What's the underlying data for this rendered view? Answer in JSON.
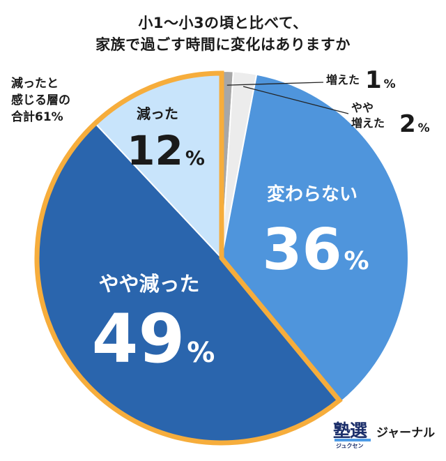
{
  "title_line1": "小1～小3の頃と比べて、",
  "title_line2": "家族で過ごす時間に変化はありますか",
  "note_line1": "減ったと",
  "note_line2": "感じる層の",
  "note_line3": "合計61%",
  "logo": {
    "main": "塾選",
    "ruby": "ジュクセン",
    "sub": "ジャーナル"
  },
  "colors": {
    "highlight_border": "#f6ad3c"
  },
  "chart_data": {
    "type": "pie",
    "start": "top-clockwise",
    "slices": [
      {
        "label": "増えた",
        "value": 1,
        "display": "1",
        "color": "#a7a7a7",
        "text_color": "#1a1a1a"
      },
      {
        "label": "やや増えた",
        "value": 2,
        "display": "2",
        "color": "#ececec",
        "text_color": "#1a1a1a"
      },
      {
        "label": "変わらない",
        "value": 36,
        "display": "36",
        "color": "#4f95dc",
        "text_color": "#ffffff"
      },
      {
        "label": "やや減った",
        "value": 49,
        "display": "49",
        "color": "#2a65ad",
        "text_color": "#ffffff"
      },
      {
        "label": "減った",
        "value": 12,
        "display": "12",
        "color": "#c8e4fb",
        "text_color": "#1a1a1a"
      }
    ],
    "unit": "%",
    "highlighted_slices": [
      "やや減った",
      "減った"
    ]
  }
}
